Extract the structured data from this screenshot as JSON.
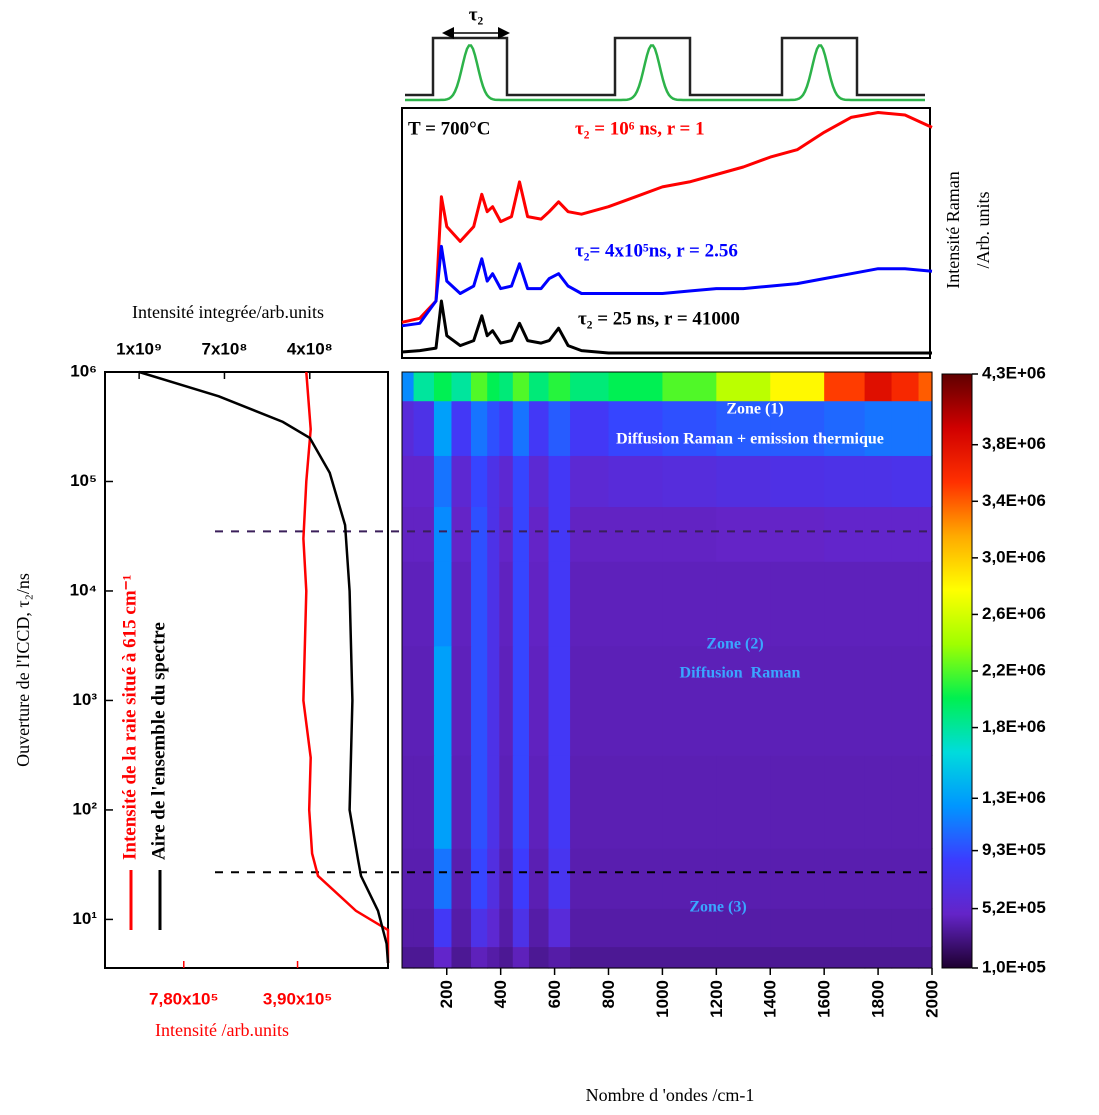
{
  "chart_data": [
    {
      "type": "line",
      "pulse_label": "τ₂",
      "annotations": [
        "T = 700°C"
      ],
      "ylabel": [
        "Intensité Raman",
        "/Arb. units"
      ],
      "x": [
        34,
        100,
        160,
        180,
        200,
        250,
        300,
        330,
        350,
        370,
        400,
        440,
        470,
        500,
        550,
        580,
        615,
        650,
        700,
        800,
        900,
        1000,
        1100,
        1200,
        1300,
        1400,
        1500,
        1600,
        1700,
        1800,
        1900,
        2000
      ],
      "xlim": [
        34,
        2000
      ],
      "ylim": [
        0,
        100
      ],
      "series": [
        {
          "name": "τ₂ = 10⁶ ns, r = 1",
          "color": "#ff0000",
          "values": [
            14.4,
            16,
            23,
            65,
            53,
            47,
            53,
            66,
            59,
            61,
            55,
            57,
            71,
            57,
            56,
            59,
            63,
            59,
            58,
            61,
            65,
            69,
            71,
            74,
            77,
            81,
            84,
            91,
            97,
            99,
            98,
            93
          ]
        },
        {
          "name": "τ₂= 4x10⁵ns, r = 2.56",
          "color": "#0000ff",
          "values": [
            13,
            14,
            23,
            45,
            31,
            26,
            29,
            40,
            31,
            34,
            28,
            29,
            38,
            28,
            28,
            32,
            34,
            29,
            26,
            26,
            26,
            26,
            27,
            28,
            28,
            29,
            30,
            32,
            34,
            36,
            36,
            35
          ]
        },
        {
          "name": "τ₂ = 25 ns, r = 41000",
          "color": "#000000",
          "values": [
            2.4,
            3,
            4,
            23,
            9,
            5,
            7,
            17,
            9,
            11,
            6,
            7,
            14,
            7,
            6,
            7,
            12,
            5,
            3,
            2,
            2,
            2,
            2,
            2,
            2,
            2,
            2,
            2,
            2,
            2,
            2,
            2
          ]
        }
      ]
    },
    {
      "type": "line",
      "ylabel": "Ouverture de l'ICCD, τ₂/ns",
      "yscale": "log",
      "ylim": [
        3.6,
        1000000
      ],
      "yticks": [
        {
          "value": 10,
          "label": "10¹"
        },
        {
          "value": 100,
          "label": "10²"
        },
        {
          "value": 1000,
          "label": "10³"
        },
        {
          "value": 10000,
          "label": "10⁴"
        },
        {
          "value": 100000,
          "label": "10⁵"
        },
        {
          "value": 1000000,
          "label": "10⁶"
        }
      ],
      "xlabel": "Intensité /arb.units",
      "xlim": [
        1050000,
        80000
      ],
      "xticks": [
        {
          "value": 780000,
          "label": "7,80x10⁵"
        },
        {
          "value": 390000,
          "label": "3,90x10⁵"
        }
      ],
      "x2label": "Intensité integrée/arb.units",
      "x2lim": [
        1120000000,
        125000000
      ],
      "x2ticks": [
        {
          "value": 1000000000,
          "label": "1x10⁹"
        },
        {
          "value": 700000000,
          "label": "7x10⁸"
        },
        {
          "value": 400000000,
          "label": "4x10⁸"
        }
      ],
      "series": [
        {
          "name": "Intensité de la raie situé à 615 cm⁻¹",
          "color": "#ff0000",
          "axis": "x",
          "tau": [
            1000000,
            300000,
            100000,
            30000,
            10000,
            1000,
            300,
            100,
            40,
            25,
            12,
            8,
            4
          ],
          "values": [
            360000,
            345000,
            360000,
            370000,
            360000,
            370000,
            345000,
            350000,
            340000,
            320000,
            190000,
            80000,
            80000
          ]
        },
        {
          "name": "Aire de l'ensemble du spectre",
          "color": "#000000",
          "axis": "x2",
          "tau": [
            1000000,
            600000,
            350000,
            250000,
            120000,
            40000,
            10000,
            1000,
            100,
            35,
            25,
            12,
            6,
            4
          ],
          "values": [
            1000000000,
            720000000,
            495000000,
            400000000,
            330000000,
            276000000,
            260000000,
            250000000,
            260000000,
            230000000,
            220000000,
            160000000,
            130000000,
            125000000
          ]
        }
      ]
    },
    {
      "type": "heatmap",
      "xlabel": "Nombre d 'ondes /cm-1",
      "xlim": [
        34,
        2000
      ],
      "xticks": [
        200,
        400,
        600,
        800,
        1000,
        1200,
        1400,
        1600,
        1800,
        2000
      ],
      "yscale": "log",
      "ylim": [
        3.6,
        1000000
      ],
      "x": [
        34,
        120,
        185,
        250,
        330,
        370,
        420,
        470,
        540,
        615,
        700,
        900,
        1100,
        1300,
        1500,
        1700,
        1800,
        1900,
        2000
      ],
      "y": [
        4,
        8,
        20,
        100,
        1000,
        10000,
        35000,
        100000,
        300000,
        1000000
      ],
      "z": [
        [
          350000,
          350000,
          500000,
          350000,
          450000,
          400000,
          350000,
          450000,
          350000,
          400000,
          350000,
          350000,
          350000,
          350000,
          350000,
          350000,
          350000,
          350000,
          350000
        ],
        [
          400000,
          400000,
          800000,
          400000,
          700000,
          550000,
          400000,
          700000,
          400000,
          600000,
          400000,
          400000,
          400000,
          400000,
          400000,
          400000,
          400000,
          400000,
          400000
        ],
        [
          420000,
          420000,
          1100000,
          420000,
          900000,
          650000,
          420000,
          850000,
          430000,
          750000,
          420000,
          420000,
          420000,
          420000,
          420000,
          420000,
          420000,
          420000,
          420000
        ],
        [
          430000,
          430000,
          1300000,
          440000,
          950000,
          700000,
          440000,
          900000,
          450000,
          800000,
          430000,
          430000,
          430000,
          430000,
          430000,
          430000,
          430000,
          430000,
          430000
        ],
        [
          440000,
          440000,
          1300000,
          450000,
          950000,
          700000,
          450000,
          900000,
          460000,
          800000,
          440000,
          440000,
          440000,
          440000,
          440000,
          440000,
          440000,
          440000,
          440000
        ],
        [
          450000,
          450000,
          1200000,
          460000,
          950000,
          700000,
          460000,
          900000,
          470000,
          800000,
          450000,
          450000,
          450000,
          450000,
          450000,
          450000,
          450000,
          450000,
          450000
        ],
        [
          470000,
          470000,
          1200000,
          480000,
          950000,
          700000,
          480000,
          900000,
          480000,
          800000,
          470000,
          470000,
          470000,
          480000,
          480000,
          500000,
          500000,
          500000,
          500000
        ],
        [
          500000,
          500000,
          1100000,
          550000,
          900000,
          700000,
          550000,
          900000,
          560000,
          800000,
          560000,
          600000,
          620000,
          650000,
          680000,
          700000,
          700000,
          720000,
          720000
        ],
        [
          600000,
          700000,
          1300000,
          800000,
          1100000,
          950000,
          800000,
          1100000,
          800000,
          1000000,
          800000,
          900000,
          950000,
          1000000,
          1000000,
          1050000,
          1100000,
          1100000,
          1100000
        ],
        [
          1200000,
          1800000,
          2000000,
          1800000,
          2200000,
          2000000,
          1900000,
          2200000,
          1900000,
          2100000,
          1900000,
          2000000,
          2200000,
          2500000,
          2800000,
          3500000,
          3800000,
          3600000,
          3400000
        ]
      ],
      "clim": [
        100000,
        4300000
      ],
      "colorscale": [
        "#1e0030",
        "#6424c8",
        "#3c3cff",
        "#0096ff",
        "#00dcdc",
        "#00f050",
        "#a0ff00",
        "#ffff00",
        "#ffaa00",
        "#ff3000",
        "#d00000",
        "#600000"
      ],
      "cticks": [
        {
          "value": 100000,
          "label": "1,0E+05"
        },
        {
          "value": 520000,
          "label": "5,2E+05"
        },
        {
          "value": 930000,
          "label": "9,3E+05"
        },
        {
          "value": 1300000,
          "label": "1,3E+06"
        },
        {
          "value": 1800000,
          "label": "1,8E+06"
        },
        {
          "value": 2200000,
          "label": "2,2E+06"
        },
        {
          "value": 2600000,
          "label": "2,6E+06"
        },
        {
          "value": 3000000,
          "label": "3,0E+06"
        },
        {
          "value": 3400000,
          "label": "3,4E+06"
        },
        {
          "value": 3800000,
          "label": "3,8E+06"
        },
        {
          "value": 4300000,
          "label": "4,3E+06"
        }
      ],
      "reference_lines": [
        35000,
        27
      ],
      "annotations": [
        "Zone (1)",
        "Diffusion Raman + emission thermique",
        "Zone (2)",
        "Diffusion  Raman",
        "Zone (3)"
      ]
    }
  ]
}
